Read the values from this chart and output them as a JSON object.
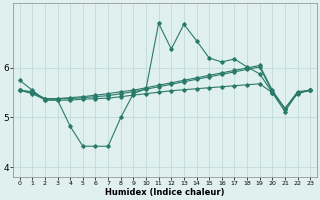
{
  "xlabel": "Humidex (Indice chaleur)",
  "ylabel": "",
  "background_color": "#dff0ee",
  "grid_color": "#c0dada",
  "line_color": "#2a7a6a",
  "xlim": [
    -0.5,
    23.5
  ],
  "ylim": [
    3.8,
    7.3
  ],
  "yticks": [
    4,
    5,
    6
  ],
  "xticks": [
    0,
    1,
    2,
    3,
    4,
    5,
    6,
    7,
    8,
    9,
    10,
    11,
    12,
    13,
    14,
    15,
    16,
    17,
    18,
    19,
    20,
    21,
    22,
    23
  ],
  "series": [
    {
      "x": [
        0,
        1,
        2,
        3,
        4,
        5,
        6,
        7,
        8,
        9,
        10,
        11,
        12,
        13,
        14,
        15,
        16,
        17,
        18,
        19,
        20,
        21,
        22,
        23
      ],
      "y": [
        5.75,
        5.55,
        5.35,
        5.35,
        4.82,
        4.42,
        4.42,
        4.42,
        5.0,
        5.48,
        5.58,
        6.9,
        6.38,
        6.88,
        6.55,
        6.2,
        6.12,
        6.18,
        6.02,
        5.88,
        5.5,
        5.12,
        5.5,
        5.55
      ]
    },
    {
      "x": [
        0,
        1,
        2,
        3,
        4,
        5,
        6,
        7,
        8,
        9,
        10,
        11,
        12,
        13,
        14,
        15,
        16,
        17,
        18,
        19,
        20,
        21,
        22,
        23
      ],
      "y": [
        5.55,
        5.52,
        5.38,
        5.38,
        5.4,
        5.42,
        5.45,
        5.48,
        5.52,
        5.55,
        5.6,
        5.65,
        5.7,
        5.75,
        5.8,
        5.85,
        5.9,
        5.95,
        6.0,
        6.05,
        5.55,
        5.18,
        5.52,
        5.55
      ]
    },
    {
      "x": [
        0,
        1,
        2,
        3,
        4,
        5,
        6,
        7,
        8,
        9,
        10,
        11,
        12,
        13,
        14,
        15,
        16,
        17,
        18,
        19,
        20,
        21,
        22,
        23
      ],
      "y": [
        5.55,
        5.5,
        5.38,
        5.38,
        5.38,
        5.4,
        5.42,
        5.44,
        5.48,
        5.52,
        5.57,
        5.62,
        5.67,
        5.72,
        5.77,
        5.82,
        5.87,
        5.92,
        5.97,
        6.02,
        5.52,
        5.18,
        5.5,
        5.55
      ]
    },
    {
      "x": [
        0,
        1,
        2,
        3,
        4,
        5,
        6,
        7,
        8,
        9,
        10,
        11,
        12,
        13,
        14,
        15,
        16,
        17,
        18,
        19,
        20,
        21,
        22,
        23
      ],
      "y": [
        5.55,
        5.48,
        5.36,
        5.35,
        5.35,
        5.37,
        5.38,
        5.39,
        5.42,
        5.45,
        5.48,
        5.51,
        5.54,
        5.56,
        5.58,
        5.6,
        5.62,
        5.64,
        5.66,
        5.68,
        5.5,
        5.18,
        5.48,
        5.55
      ]
    }
  ]
}
